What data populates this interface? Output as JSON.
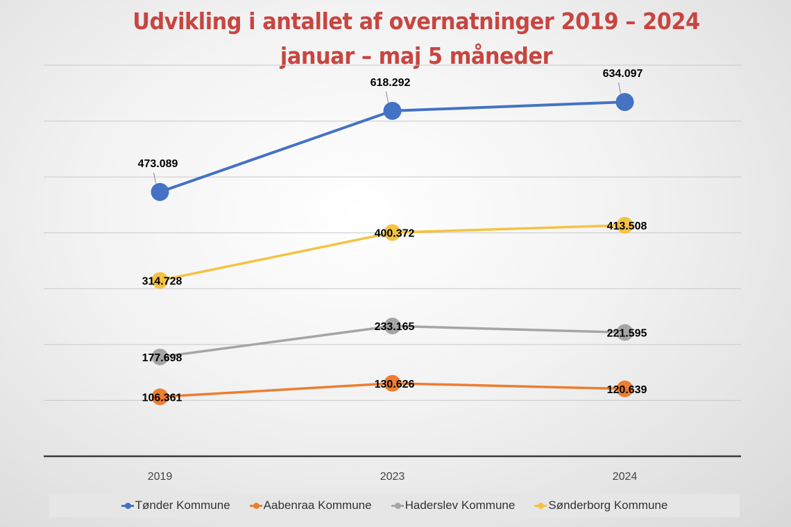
{
  "chart_data": {
    "type": "line",
    "title": [
      "Udvikling i antallet af overnatninger 2019 – 2024",
      "januar – maj 5 måneder"
    ],
    "categories": [
      "2019",
      "2023",
      "2024"
    ],
    "ylim": [
      0,
      700000
    ],
    "grid": true,
    "legend_position": "bottom",
    "series": [
      {
        "name": "Tønder Kommune",
        "color": "#4472c4",
        "values": [
          473089,
          618292,
          634097
        ],
        "labels": [
          "473.089",
          "618.292",
          "634.097"
        ]
      },
      {
        "name": "Aabenraa Kommune",
        "color": "#ed7d31",
        "values": [
          106361,
          130626,
          120639
        ],
        "labels": [
          "106.361",
          "130.626",
          "120.639"
        ]
      },
      {
        "name": "Haderslev Kommune",
        "color": "#a5a5a5",
        "values": [
          177698,
          233165,
          221595
        ],
        "labels": [
          "177.698",
          "233.165",
          "221.595"
        ]
      },
      {
        "name": "Sønderborg Kommune",
        "color": "#f5c342",
        "values": [
          314728,
          400372,
          413508
        ],
        "labels": [
          "314.728",
          "400.372",
          "413.508"
        ]
      }
    ]
  }
}
